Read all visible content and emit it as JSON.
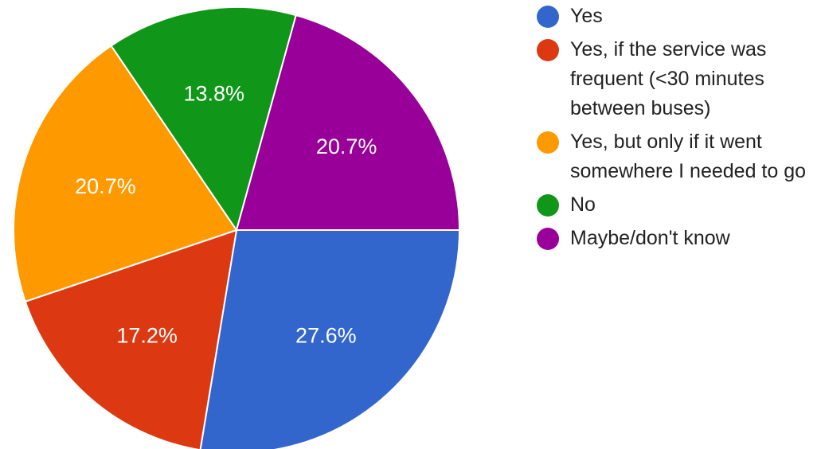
{
  "chart_data": {
    "type": "pie",
    "title": "",
    "slices": [
      {
        "label": "Yes",
        "value": 27.6,
        "display": "27.6%",
        "color": "#3366cc"
      },
      {
        "label": "Yes, if the service was frequent (<30 minutes between buses)",
        "value": 17.2,
        "display": "17.2%",
        "color": "#dc3912"
      },
      {
        "label": "Yes, but only if it went somewhere I needed to go",
        "value": 20.7,
        "display": "20.7%",
        "color": "#ff9900"
      },
      {
        "label": "No",
        "value": 13.8,
        "display": "13.8%",
        "color": "#109618"
      },
      {
        "label": "Maybe/don't know",
        "value": 20.7,
        "display": "20.7%",
        "color": "#990099"
      }
    ],
    "legend_position": "right"
  }
}
